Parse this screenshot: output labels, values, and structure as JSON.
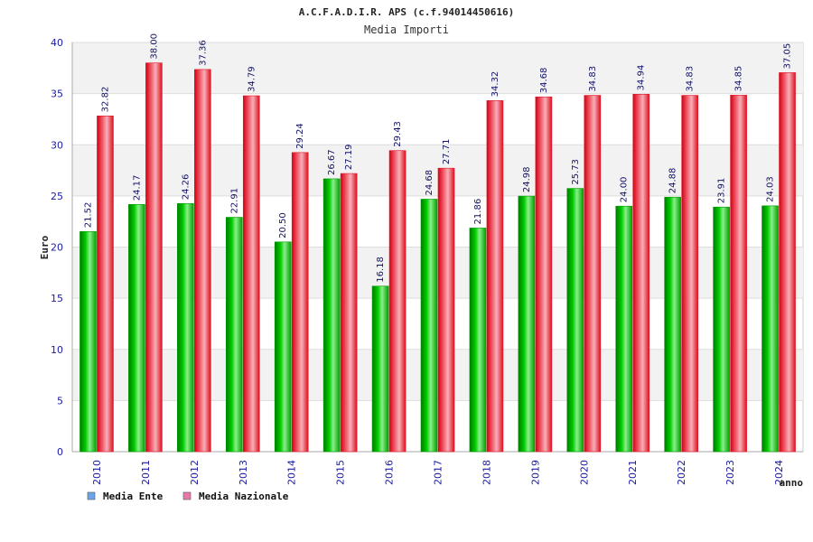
{
  "chart_data": {
    "type": "bar",
    "title": "A.C.F.A.D.I.R. APS (c.f.94014450616)",
    "subtitle": "Media Importi",
    "xlabel": "anno",
    "ylabel": "Euro",
    "ylim": [
      0,
      40
    ],
    "yticks": [
      0,
      5,
      10,
      15,
      20,
      25,
      30,
      35,
      40
    ],
    "categories": [
      "2010",
      "2011",
      "2012",
      "2013",
      "2014",
      "2015",
      "2016",
      "2017",
      "2018",
      "2019",
      "2020",
      "2021",
      "2022",
      "2023",
      "2024"
    ],
    "series": [
      {
        "name": "Media Ente",
        "color": "#00bb00",
        "values": [
          21.52,
          24.17,
          24.26,
          22.91,
          20.5,
          26.67,
          16.18,
          24.68,
          21.86,
          24.98,
          25.73,
          24.0,
          24.88,
          23.91,
          24.03
        ],
        "labels": [
          "21.52",
          "24.17",
          "24.26",
          "22.91",
          "20.50",
          "26.67",
          "16.18",
          "24.68",
          "21.86",
          "24.98",
          "25.73",
          "24.00",
          "24.88",
          "23.91",
          "24.03"
        ]
      },
      {
        "name": "Media Nazionale",
        "color": "#ee2222",
        "values": [
          32.82,
          38.0,
          37.36,
          34.79,
          29.24,
          27.19,
          29.43,
          27.71,
          34.32,
          34.68,
          34.83,
          34.94,
          34.83,
          34.85,
          37.05
        ],
        "labels": [
          "32.82",
          "38.00",
          "37.36",
          "34.79",
          "29.24",
          "27.19",
          "29.43",
          "27.71",
          "34.32",
          "34.68",
          "34.83",
          "34.94",
          "34.83",
          "34.85",
          "37.05"
        ]
      }
    ],
    "legend": [
      {
        "label": "Media Ente",
        "color": "#6aa6e8"
      },
      {
        "label": "Media Nazionale",
        "color": "#e87aa8"
      }
    ],
    "legend_position": "bottom-left",
    "grid": true
  }
}
